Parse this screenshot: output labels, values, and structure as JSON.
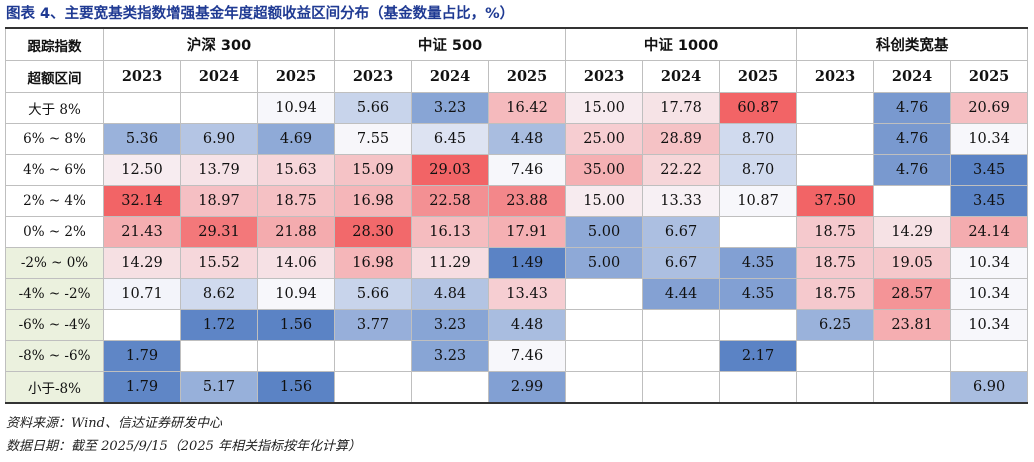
{
  "title": "图表 4、主要宽基类指数增强基金年度超额收益区间分布（基金数量占比，%）",
  "table": {
    "header_label_1": "跟踪指数",
    "header_label_2": "超额区间",
    "groups": [
      {
        "name": "沪深 300",
        "years": [
          "2023",
          "2024",
          "2025"
        ]
      },
      {
        "name": "中证 500",
        "years": [
          "2023",
          "2024",
          "2025"
        ]
      },
      {
        "name": "中证 1000",
        "years": [
          "2023",
          "2024",
          "2025"
        ]
      },
      {
        "name": "科创类宽基",
        "years": [
          "2023",
          "2024",
          "2025"
        ]
      }
    ],
    "rows": [
      {
        "label": "大于 8%",
        "neg": false,
        "values": [
          "",
          "",
          "10.94",
          "5.66",
          "3.23",
          "16.42",
          "15.00",
          "17.78",
          "60.87",
          "",
          "4.76",
          "20.69"
        ]
      },
      {
        "label": "6% ~ 8%",
        "neg": false,
        "values": [
          "5.36",
          "6.90",
          "4.69",
          "7.55",
          "6.45",
          "4.48",
          "25.00",
          "28.89",
          "8.70",
          "",
          "4.76",
          "10.34"
        ]
      },
      {
        "label": "4% ~ 6%",
        "neg": false,
        "values": [
          "12.50",
          "13.79",
          "15.63",
          "15.09",
          "29.03",
          "7.46",
          "35.00",
          "22.22",
          "8.70",
          "",
          "4.76",
          "3.45"
        ]
      },
      {
        "label": "2% ~ 4%",
        "neg": false,
        "values": [
          "32.14",
          "18.97",
          "18.75",
          "16.98",
          "22.58",
          "23.88",
          "15.00",
          "13.33",
          "10.87",
          "37.50",
          "",
          "3.45"
        ]
      },
      {
        "label": "0% ~ 2%",
        "neg": false,
        "values": [
          "21.43",
          "29.31",
          "21.88",
          "28.30",
          "16.13",
          "17.91",
          "5.00",
          "6.67",
          "",
          "18.75",
          "14.29",
          "24.14"
        ]
      },
      {
        "label": "-2% ~ 0%",
        "neg": true,
        "values": [
          "14.29",
          "15.52",
          "14.06",
          "16.98",
          "11.29",
          "1.49",
          "5.00",
          "6.67",
          "4.35",
          "18.75",
          "19.05",
          "10.34"
        ]
      },
      {
        "label": "-4% ~ -2%",
        "neg": true,
        "values": [
          "10.71",
          "8.62",
          "10.94",
          "5.66",
          "4.84",
          "13.43",
          "",
          "4.44",
          "4.35",
          "18.75",
          "28.57",
          "10.34"
        ]
      },
      {
        "label": "-6% ~ -4%",
        "neg": true,
        "values": [
          "",
          "1.72",
          "1.56",
          "3.77",
          "3.23",
          "4.48",
          "",
          "",
          "",
          "6.25",
          "23.81",
          "10.34"
        ]
      },
      {
        "label": "-8% ~ -6%",
        "neg": true,
        "values": [
          "1.79",
          "",
          "",
          "",
          "3.23",
          "7.46",
          "",
          "",
          "2.17",
          "",
          "",
          ""
        ]
      },
      {
        "label": "小于-8%",
        "neg": true,
        "values": [
          "1.79",
          "5.17",
          "1.56",
          "",
          "",
          "2.99",
          "",
          "",
          "",
          "",
          "",
          "6.90"
        ]
      }
    ]
  },
  "colors": {
    "title": "#1f3a93",
    "neg_label_bg": "#ebf1de",
    "low": "#5b83c5",
    "mid": "#f7f7fb",
    "high": "#f26466"
  },
  "notes": {
    "source": "资料来源：Wind、信达证券研发中心",
    "date": "数据日期：截至 2025/9/15（2025 年相关指标按年化计算）"
  }
}
